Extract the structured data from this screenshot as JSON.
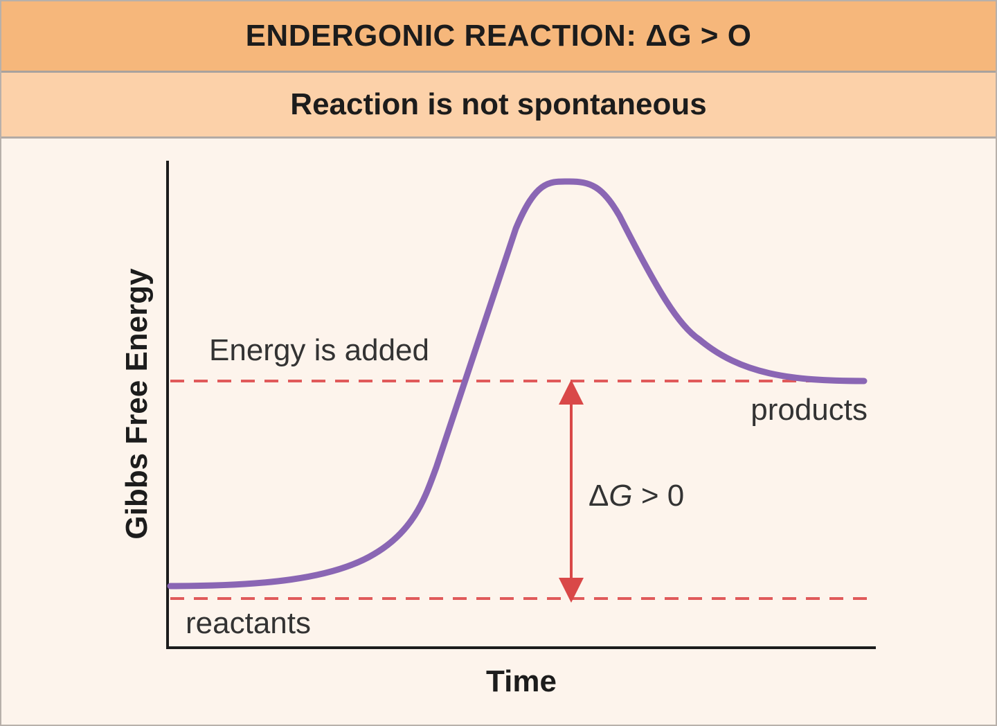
{
  "header": {
    "title": "ENDERGONIC REACTION: ΔG > O",
    "subtitle": "Reaction is not spontaneous"
  },
  "diagram": {
    "y_axis_label": "Gibbs Free Energy",
    "x_axis_label": "Time",
    "energy_label": "Energy is added",
    "products_label": "products",
    "reactants_label": "reactants",
    "delta_g_symbol": "Δ",
    "delta_g_variable": "G",
    "delta_g_relation": " > 0"
  },
  "colors": {
    "title_bar": "#f6b77b",
    "subtitle_bar": "#fcd1a9",
    "background": "#fdf4ec",
    "curve": "#8a66b4",
    "dashed_line": "#e05a5a",
    "arrow": "#d94848",
    "axis": "#1c1c1c"
  }
}
